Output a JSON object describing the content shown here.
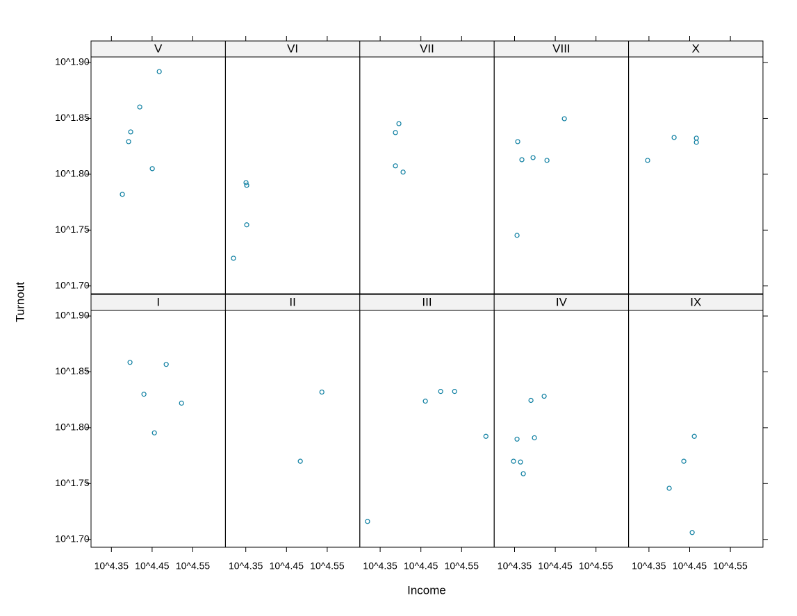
{
  "chart_data": {
    "type": "scatter",
    "xlabel": "Income",
    "ylabel": "Turnout",
    "color": "#0a7da0",
    "xlim": [
      4.3,
      4.63
    ],
    "ylim": [
      1.693,
      1.905
    ],
    "xticks": [
      {
        "value": 4.35,
        "label": "10^4.35"
      },
      {
        "value": 4.45,
        "label": "10^4.45"
      },
      {
        "value": 4.55,
        "label": "10^4.55"
      }
    ],
    "yticks": [
      {
        "value": 1.7,
        "label": "10^1.70"
      },
      {
        "value": 1.75,
        "label": "10^1.75"
      },
      {
        "value": 1.8,
        "label": "10^1.80"
      },
      {
        "value": 1.85,
        "label": "10^1.85"
      },
      {
        "value": 1.9,
        "label": "10^1.90"
      }
    ],
    "panels": [
      {
        "name": "V",
        "x": [
          4.4675,
          4.4197,
          4.3974,
          4.3923,
          4.4504,
          4.3769
        ],
        "y": [
          1.8919,
          1.8602,
          1.8379,
          1.8292,
          1.805,
          1.782
        ]
      },
      {
        "name": "VI",
        "x": [
          4.3506,
          4.3523,
          4.3523,
          4.3198
        ],
        "y": [
          1.7925,
          1.7901,
          1.7547,
          1.7248
        ]
      },
      {
        "name": "VII",
        "x": [
          4.396,
          4.3875,
          4.3875,
          4.4063
        ],
        "y": [
          1.8453,
          1.8373,
          1.8075,
          1.8019
        ]
      },
      {
        "name": "VIII",
        "x": [
          4.4723,
          4.3578,
          4.368,
          4.3954,
          4.4296,
          4.3561
        ],
        "y": [
          1.8497,
          1.8292,
          1.813,
          1.8149,
          1.8124,
          1.7453
        ]
      },
      {
        "name": "X",
        "x": [
          4.3468,
          4.4118,
          4.4665,
          4.4665
        ],
        "y": [
          1.8124,
          1.8329,
          1.8323,
          1.8286
        ]
      },
      {
        "name": "I",
        "x": [
          4.3957,
          4.4846,
          4.4299,
          4.5222,
          4.4556
        ],
        "y": [
          1.8585,
          1.8567,
          1.83,
          1.822,
          1.7954
        ]
      },
      {
        "name": "II",
        "x": [
          4.5369,
          4.4839
        ],
        "y": [
          1.8319,
          1.77
        ]
      },
      {
        "name": "III",
        "x": [
          4.461,
          4.4986,
          4.5328,
          4.6097,
          4.319
        ],
        "y": [
          1.8238,
          1.8325,
          1.8325,
          1.7923,
          1.7161
        ]
      },
      {
        "name": "IV",
        "x": [
          4.4227,
          4.3903,
          4.3988,
          4.3561,
          4.3475,
          4.3646,
          4.3715
        ],
        "y": [
          1.8282,
          1.8245,
          1.791,
          1.7898,
          1.77,
          1.7693,
          1.7588
        ]
      },
      {
        "name": "IX",
        "x": [
          4.4614,
          4.4357,
          4.3998,
          4.4562
        ],
        "y": [
          1.7923,
          1.77,
          1.7458,
          1.7062
        ]
      }
    ]
  }
}
